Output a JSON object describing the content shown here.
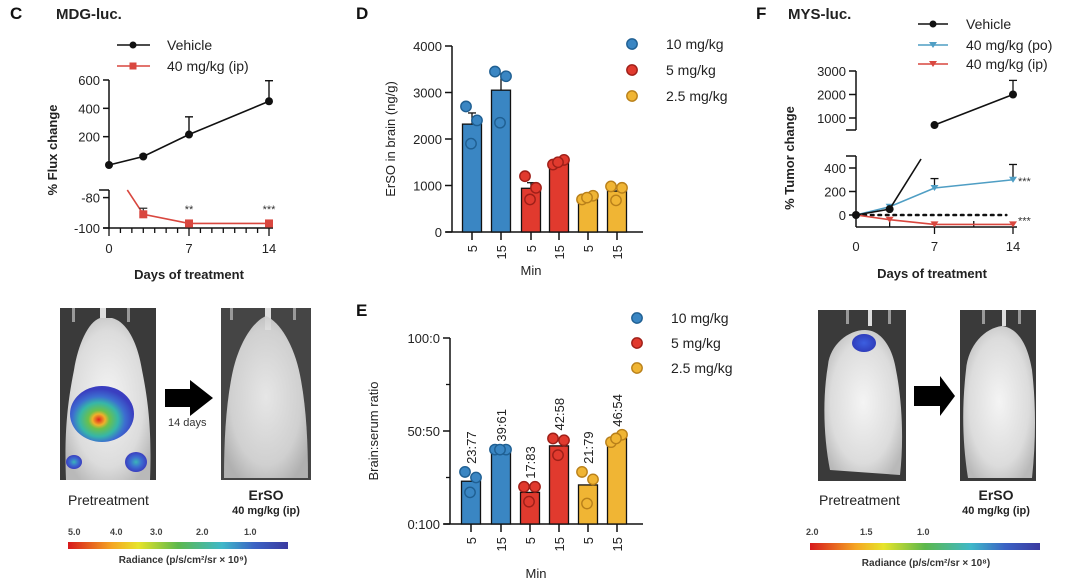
{
  "figure": {
    "panel_c": {
      "letter": "C",
      "title": "MDG-luc."
    },
    "panel_d": {
      "letter": "D"
    },
    "panel_e": {
      "letter": "E"
    },
    "panel_f": {
      "letter": "F",
      "title": "MYS-luc."
    }
  },
  "colors": {
    "vehicle": "#111111",
    "ip_red": "#d9473f",
    "po_blue": "#4f9ec4",
    "bar_blue": "#3a86c3",
    "bar_red": "#e13a2e",
    "bar_yellow": "#f0b534"
  },
  "chart_data": [
    {
      "id": "C",
      "type": "line",
      "title": "MDG-luc.",
      "xlabel": "Days of treatment",
      "ylabel": "% Flux change",
      "x_ticks": [
        "0",
        "7",
        "14"
      ],
      "xlim": [
        0,
        14
      ],
      "y_axis_break": true,
      "upper_ylim": [
        0,
        600
      ],
      "upper_y_ticks": [
        "200",
        "400",
        "600"
      ],
      "lower_ylim": [
        -100,
        -75
      ],
      "lower_y_ticks": [
        "-80",
        "-100"
      ],
      "legend_position": "top",
      "series": [
        {
          "name": "Vehicle",
          "marker": "circle",
          "x": [
            0,
            3,
            7,
            14
          ],
          "y": [
            0,
            60,
            215,
            450
          ],
          "err_upper": [
            0,
            70,
            340,
            595
          ]
        },
        {
          "name": "40 mg/kg (ip)",
          "marker": "square",
          "x": [
            0,
            3,
            7,
            14
          ],
          "y": [
            0,
            -91,
            -97,
            -97
          ],
          "err_upper": [
            0,
            -87,
            -97,
            -97
          ]
        }
      ],
      "annotations": [
        {
          "x": 7,
          "text": "**"
        },
        {
          "x": 14,
          "text": "***"
        }
      ]
    },
    {
      "id": "D",
      "type": "bar",
      "xlabel": "Min",
      "ylabel": "ErSO in brain (ng/g)",
      "ylim": [
        0,
        4000
      ],
      "y_ticks": [
        "0",
        "1000",
        "2000",
        "3000",
        "4000"
      ],
      "categories": [
        "5",
        "15",
        "5",
        "15",
        "5",
        "15"
      ],
      "groups": [
        "10 mg/kg",
        "10 mg/kg",
        "5 mg/kg",
        "5 mg/kg",
        "2.5 mg/kg",
        "2.5 mg/kg"
      ],
      "values": [
        2320,
        3050,
        940,
        1500,
        740,
        880
      ],
      "err_upper": [
        2560,
        3400,
        1060,
        1540,
        770,
        960
      ],
      "points": [
        [
          2700,
          2400,
          1900
        ],
        [
          3450,
          3350,
          2350
        ],
        [
          1200,
          950,
          700
        ],
        [
          1450,
          1550,
          1500
        ],
        [
          700,
          780,
          740
        ],
        [
          980,
          950,
          680
        ]
      ],
      "legend": [
        "10 mg/kg",
        "5 mg/kg",
        "2.5 mg/kg"
      ],
      "legend_position": "top-right"
    },
    {
      "id": "E",
      "type": "bar",
      "xlabel": "Min",
      "ylabel": "Brain:serum ratio",
      "ylim": [
        0,
        100
      ],
      "y_ticks": [
        "0:100",
        "50:50",
        "100:0"
      ],
      "categories": [
        "5",
        "15",
        "5",
        "15",
        "5",
        "15"
      ],
      "groups": [
        "10 mg/kg",
        "10 mg/kg",
        "5 mg/kg",
        "5 mg/kg",
        "2.5 mg/kg",
        "2.5 mg/kg"
      ],
      "values": [
        23,
        39,
        17,
        42,
        21,
        46
      ],
      "data_labels": [
        "23:77",
        "39:61",
        "17:83",
        "42:58",
        "21:79",
        "46:54"
      ],
      "points": [
        [
          28,
          25,
          17
        ],
        [
          40,
          40,
          40
        ],
        [
          20,
          20,
          12
        ],
        [
          46,
          45,
          37
        ],
        [
          28,
          24,
          11
        ],
        [
          44,
          48,
          46
        ]
      ],
      "legend": [
        "10 mg/kg",
        "5 mg/kg",
        "2.5 mg/kg"
      ],
      "legend_position": "top-right"
    },
    {
      "id": "F",
      "type": "line",
      "title": "MYS-luc.",
      "xlabel": "Days of treatment",
      "ylabel": "% Tumor change",
      "x_ticks": [
        "0",
        "7",
        "14"
      ],
      "xlim": [
        0,
        14
      ],
      "y_axis_break": true,
      "upper_ylim": [
        500,
        3000
      ],
      "upper_y_ticks": [
        "1000",
        "2000",
        "3000"
      ],
      "lower_ylim": [
        -100,
        500
      ],
      "lower_y_ticks": [
        "0",
        "200",
        "400"
      ],
      "reference_line": {
        "y": 0,
        "style": "dotted"
      },
      "legend_position": "top",
      "series": [
        {
          "name": "Vehicle",
          "marker": "circle",
          "x": [
            0,
            3,
            7,
            14
          ],
          "y": [
            0,
            50,
            700,
            2000
          ],
          "err_upper": [
            0,
            50,
            700,
            2600
          ]
        },
        {
          "name": "40 mg/kg (po)",
          "marker": "triangle-down",
          "x": [
            0,
            3,
            7,
            14
          ],
          "y": [
            0,
            70,
            230,
            300
          ],
          "err_upper": [
            0,
            70,
            310,
            430
          ]
        },
        {
          "name": "40 mg/kg (ip)",
          "marker": "triangle-down",
          "x": [
            0,
            3,
            7,
            14
          ],
          "y": [
            0,
            -40,
            -80,
            -80
          ],
          "err_upper": [
            0,
            -40,
            -80,
            -80
          ]
        }
      ],
      "annotations": [
        {
          "series": "40 mg/kg (po)",
          "x": 14,
          "text": "***"
        },
        {
          "series": "40 mg/kg (ip)",
          "x": 14,
          "text": "***"
        }
      ]
    }
  ],
  "images": {
    "c_left_caption": "Pretreatment",
    "c_arrow_label": "14 days",
    "c_right_caption": "ErSO",
    "c_right_subcaption": "40 mg/kg (ip)",
    "c_colorbar_ticks": [
      "5.0",
      "4.0",
      "3.0",
      "2.0",
      "1.0"
    ],
    "c_colorbar_label": "Radiance (p/s/cm²/sr × 10⁹)",
    "f_left_caption": "Pretreatment",
    "f_right_caption": "ErSO",
    "f_right_subcaption": "40 mg/kg (ip)",
    "f_colorbar_ticks": [
      "2.0",
      "1.5",
      "1.0"
    ],
    "f_colorbar_label": "Radiance (p/s/cm²/sr × 10⁸)"
  }
}
